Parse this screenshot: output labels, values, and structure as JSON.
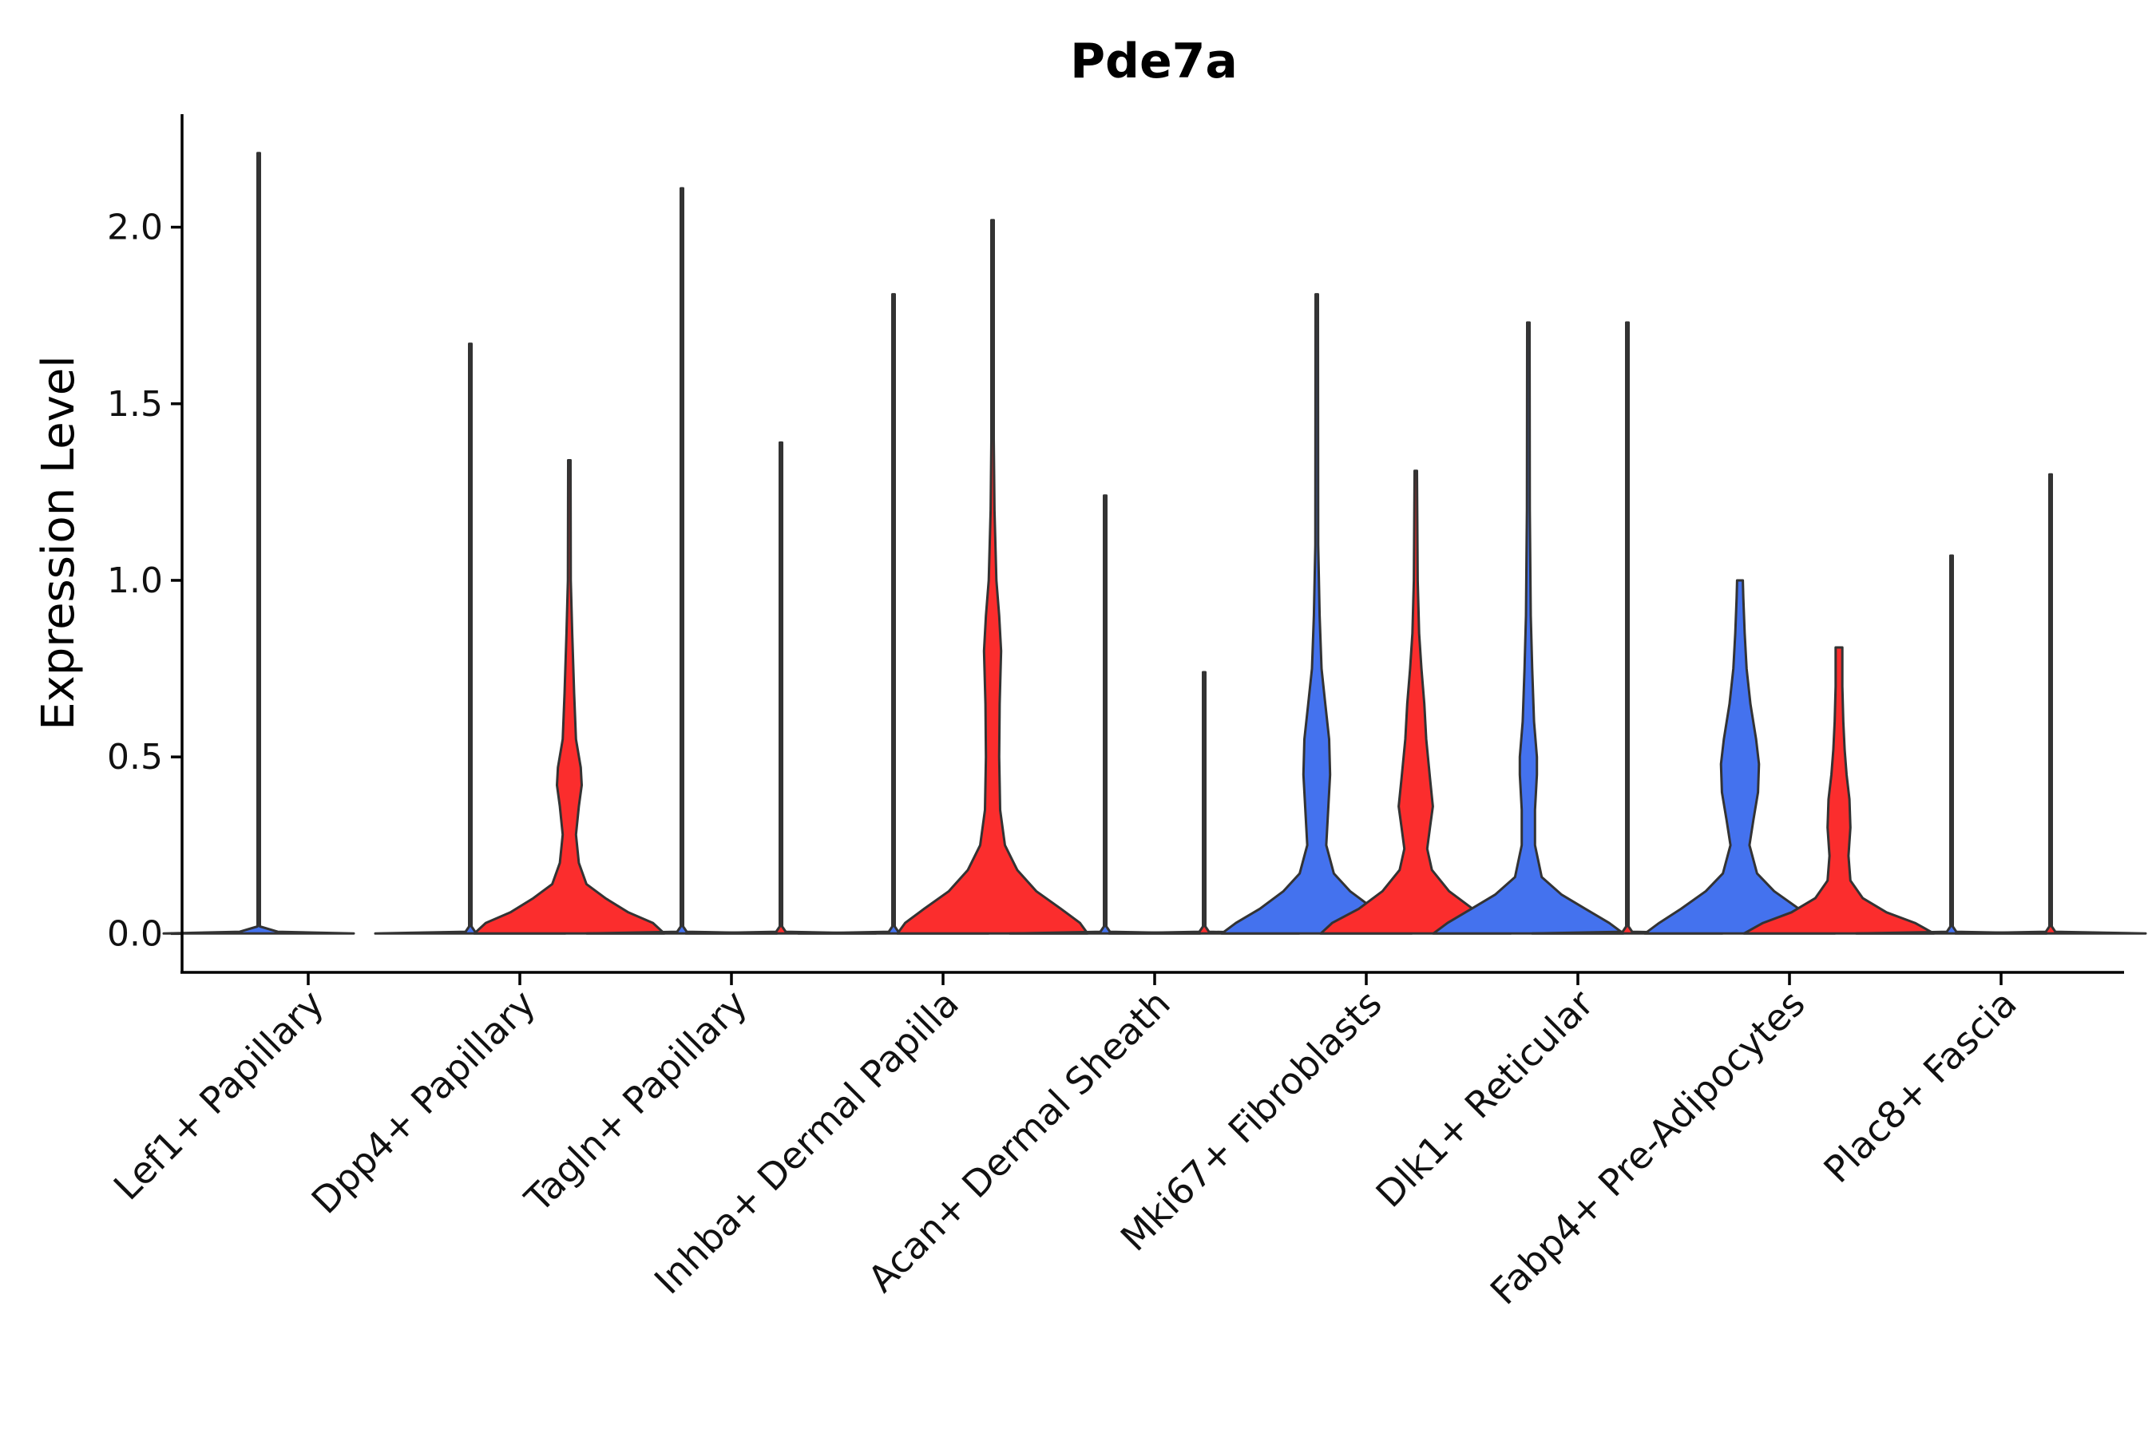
{
  "chart_data": {
    "type": "violin",
    "title": "Pde7a",
    "xlabel": "",
    "ylabel": "Expression Level",
    "ylim": [
      -0.11,
      2.32
    ],
    "yticks": [
      0.0,
      0.5,
      1.0,
      1.5,
      2.0
    ],
    "ytick_labels": [
      "0.0",
      "0.5",
      "1.0",
      "1.5",
      "2.0"
    ],
    "colors": {
      "group1": "#4472ee",
      "group2": "#fb2d2d",
      "outline": "#333333"
    },
    "categories": [
      "Lef1+ Papillary",
      "Dpp4+ Papillary",
      "Tagln+ Papillary",
      "Inhba+ Dermal Papilla",
      "Acan+ Dermal Sheath",
      "Mki67+ Fibroblasts",
      "Dlk1+ Reticular",
      "Fabp4+ Pre-Adipocytes",
      "Plac8+ Fascia"
    ],
    "violins": [
      {
        "category": "Lef1+ Papillary",
        "group": "group1",
        "max": 2.21,
        "profile": [
          [
            0,
            1.0
          ],
          [
            0.005,
            0.2
          ],
          [
            0.02,
            0.01
          ],
          [
            2.21,
            0.01
          ]
        ]
      },
      {
        "category": "Lef1+ Papillary",
        "group": "group2",
        "max": 0.0,
        "profile": []
      },
      {
        "category": "Dpp4+ Papillary",
        "group": "group1",
        "max": 1.67,
        "profile": [
          [
            0,
            1.0
          ],
          [
            0.005,
            0.05
          ],
          [
            0.02,
            0.01
          ],
          [
            1.67,
            0.01
          ]
        ]
      },
      {
        "category": "Dpp4+ Papillary",
        "group": "group2",
        "max": 1.34,
        "profile": [
          [
            0,
            1.0
          ],
          [
            0.03,
            0.88
          ],
          [
            0.06,
            0.62
          ],
          [
            0.1,
            0.38
          ],
          [
            0.14,
            0.18
          ],
          [
            0.2,
            0.1
          ],
          [
            0.28,
            0.07
          ],
          [
            0.36,
            0.1
          ],
          [
            0.42,
            0.13
          ],
          [
            0.47,
            0.12
          ],
          [
            0.55,
            0.07
          ],
          [
            0.68,
            0.05
          ],
          [
            0.85,
            0.03
          ],
          [
            1.0,
            0.015
          ],
          [
            1.34,
            0.01
          ]
        ]
      },
      {
        "category": "Tagln+ Papillary",
        "group": "group1",
        "max": 2.11,
        "profile": [
          [
            0,
            1.0
          ],
          [
            0.005,
            0.05
          ],
          [
            0.02,
            0.01
          ],
          [
            2.11,
            0.01
          ]
        ]
      },
      {
        "category": "Tagln+ Papillary",
        "group": "group2",
        "max": 1.39,
        "profile": [
          [
            0,
            1.0
          ],
          [
            0.005,
            0.05
          ],
          [
            0.02,
            0.01
          ],
          [
            1.39,
            0.01
          ]
        ]
      },
      {
        "category": "Inhba+ Dermal Papilla",
        "group": "group1",
        "max": 1.81,
        "profile": [
          [
            0,
            1.0
          ],
          [
            0.005,
            0.05
          ],
          [
            0.02,
            0.01
          ],
          [
            1.81,
            0.01
          ]
        ]
      },
      {
        "category": "Inhba+ Dermal Papilla",
        "group": "group2",
        "max": 2.02,
        "profile": [
          [
            0,
            1.0
          ],
          [
            0.03,
            0.92
          ],
          [
            0.07,
            0.72
          ],
          [
            0.12,
            0.46
          ],
          [
            0.18,
            0.26
          ],
          [
            0.25,
            0.13
          ],
          [
            0.35,
            0.08
          ],
          [
            0.5,
            0.07
          ],
          [
            0.65,
            0.075
          ],
          [
            0.8,
            0.09
          ],
          [
            0.9,
            0.07
          ],
          [
            1.0,
            0.04
          ],
          [
            1.2,
            0.02
          ],
          [
            1.4,
            0.012
          ],
          [
            2.02,
            0.01
          ]
        ]
      },
      {
        "category": "Acan+ Dermal Sheath",
        "group": "group1",
        "max": 1.24,
        "profile": [
          [
            0,
            1.0
          ],
          [
            0.005,
            0.05
          ],
          [
            0.02,
            0.01
          ],
          [
            1.24,
            0.01
          ]
        ]
      },
      {
        "category": "Acan+ Dermal Sheath",
        "group": "group2",
        "max": 0.74,
        "profile": [
          [
            0,
            1.0
          ],
          [
            0.005,
            0.05
          ],
          [
            0.02,
            0.01
          ],
          [
            0.74,
            0.01
          ]
        ]
      },
      {
        "category": "Mki67+ Fibroblasts",
        "group": "group1",
        "max": 1.81,
        "profile": [
          [
            0,
            1.0
          ],
          [
            0.03,
            0.85
          ],
          [
            0.07,
            0.6
          ],
          [
            0.12,
            0.35
          ],
          [
            0.17,
            0.18
          ],
          [
            0.25,
            0.1
          ],
          [
            0.35,
            0.12
          ],
          [
            0.45,
            0.14
          ],
          [
            0.55,
            0.13
          ],
          [
            0.65,
            0.09
          ],
          [
            0.75,
            0.05
          ],
          [
            0.9,
            0.03
          ],
          [
            1.1,
            0.015
          ],
          [
            1.81,
            0.01
          ]
        ]
      },
      {
        "category": "Mki67+ Fibroblasts",
        "group": "group2",
        "max": 1.31,
        "profile": [
          [
            0,
            1.0
          ],
          [
            0.03,
            0.88
          ],
          [
            0.07,
            0.6
          ],
          [
            0.12,
            0.35
          ],
          [
            0.18,
            0.17
          ],
          [
            0.24,
            0.12
          ],
          [
            0.3,
            0.15
          ],
          [
            0.36,
            0.18
          ],
          [
            0.44,
            0.15
          ],
          [
            0.55,
            0.11
          ],
          [
            0.65,
            0.09
          ],
          [
            0.75,
            0.06
          ],
          [
            0.85,
            0.035
          ],
          [
            1.0,
            0.02
          ],
          [
            1.31,
            0.01
          ]
        ]
      },
      {
        "category": "Dlk1+ Reticular",
        "group": "group1",
        "max": 1.73,
        "profile": [
          [
            0,
            1.0
          ],
          [
            0.03,
            0.85
          ],
          [
            0.07,
            0.6
          ],
          [
            0.11,
            0.35
          ],
          [
            0.16,
            0.14
          ],
          [
            0.25,
            0.07
          ],
          [
            0.35,
            0.07
          ],
          [
            0.45,
            0.09
          ],
          [
            0.5,
            0.09
          ],
          [
            0.6,
            0.06
          ],
          [
            0.75,
            0.04
          ],
          [
            0.9,
            0.025
          ],
          [
            1.2,
            0.015
          ],
          [
            1.73,
            0.01
          ]
        ]
      },
      {
        "category": "Dlk1+ Reticular",
        "group": "group2",
        "max": 1.73,
        "profile": [
          [
            0,
            1.0
          ],
          [
            0.005,
            0.05
          ],
          [
            0.02,
            0.01
          ],
          [
            1.73,
            0.01
          ]
        ]
      },
      {
        "category": "Fabp4+ Pre-Adipocytes",
        "group": "group1",
        "max": 1.0,
        "profile": [
          [
            0,
            1.0
          ],
          [
            0.03,
            0.85
          ],
          [
            0.07,
            0.62
          ],
          [
            0.12,
            0.36
          ],
          [
            0.17,
            0.18
          ],
          [
            0.25,
            0.1
          ],
          [
            0.32,
            0.14
          ],
          [
            0.4,
            0.19
          ],
          [
            0.48,
            0.2
          ],
          [
            0.55,
            0.17
          ],
          [
            0.65,
            0.11
          ],
          [
            0.75,
            0.07
          ],
          [
            0.85,
            0.05
          ],
          [
            0.95,
            0.035
          ],
          [
            1.0,
            0.03
          ]
        ]
      },
      {
        "category": "Fabp4+ Pre-Adipocytes",
        "group": "group2",
        "max": 0.81,
        "profile": [
          [
            0,
            1.0
          ],
          [
            0.03,
            0.8
          ],
          [
            0.06,
            0.5
          ],
          [
            0.1,
            0.25
          ],
          [
            0.15,
            0.12
          ],
          [
            0.22,
            0.1
          ],
          [
            0.3,
            0.12
          ],
          [
            0.38,
            0.11
          ],
          [
            0.45,
            0.08
          ],
          [
            0.52,
            0.06
          ],
          [
            0.6,
            0.045
          ],
          [
            0.7,
            0.035
          ],
          [
            0.81,
            0.035
          ]
        ]
      },
      {
        "category": "Plac8+ Fascia",
        "group": "group1",
        "max": 1.07,
        "profile": [
          [
            0,
            1.0
          ],
          [
            0.005,
            0.05
          ],
          [
            0.02,
            0.01
          ],
          [
            1.07,
            0.01
          ]
        ]
      },
      {
        "category": "Plac8+ Fascia",
        "group": "group2",
        "max": 1.3,
        "profile": [
          [
            0,
            1.0
          ],
          [
            0.005,
            0.05
          ],
          [
            0.02,
            0.01
          ],
          [
            1.3,
            0.01
          ]
        ]
      }
    ]
  }
}
